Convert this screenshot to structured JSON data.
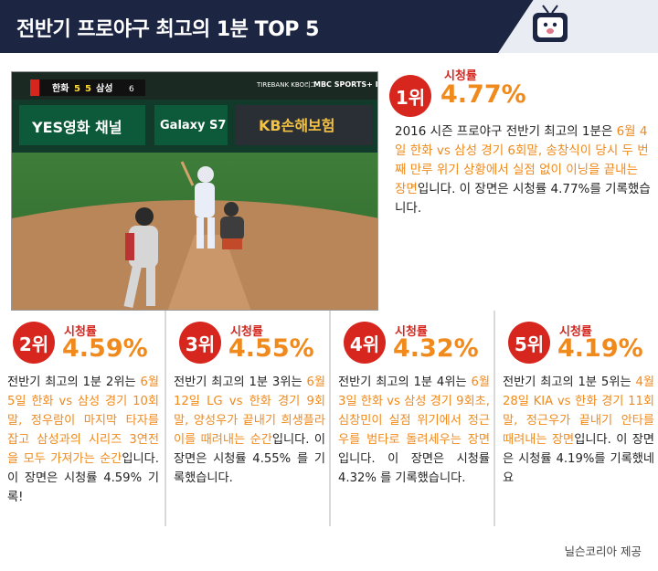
{
  "header": {
    "title": "전반기 프로야구 최고의 1분 TOP 5"
  },
  "scoreboard": {
    "team1": "한화",
    "score1": "5",
    "team2": "삼성",
    "score2": "5",
    "inning": "6"
  },
  "broadcast": {
    "sponsor": "TIREBANK KBO리그",
    "logo": "MBC SPORTS+ LIVE"
  },
  "banners": {
    "left": "YES영화 채널",
    "middle": "Galaxy S7",
    "right": "KB손해보험"
  },
  "ranks": [
    {
      "rank": "1위",
      "label": "시청률",
      "value": "4.77%",
      "desc_pre": "2016 시즌 프로야구 전반기 최고의 1분은 ",
      "desc_hl": "6월 4일 한화 vs 삼성 경기 6회말, 송창식이 당시 두 번째 만루 위기 상황에서 실점 없이 이닝을 끝내는 장면",
      "desc_post": "입니다. 이 장면은 시청률 4.77%를 기록했습니다."
    },
    {
      "rank": "2위",
      "label": "시청률",
      "value": "4.59%",
      "desc_pre": "전반기 최고의 1분 2위는 ",
      "desc_hl": "6월 5일 한화 vs 삼성 경기 10회말, 정우람이 마지막 타자를 잡고 삼성과의 시리즈 3연전을 모두 가져가는 순간",
      "desc_post": "입니다. 이 장면은 시청률 4.59% 기록!"
    },
    {
      "rank": "3위",
      "label": "시청률",
      "value": "4.55%",
      "desc_pre": "전반기 최고의 1분 3위는 ",
      "desc_hl": "6월 12일 LG vs 한화 경기 9회말, 양성우가 끝내기 희생플라이를 때려내는 순간",
      "desc_post": "입니다. 이 장면은 시청률 4.55% 를 기록했습니다."
    },
    {
      "rank": "4위",
      "label": "시청률",
      "value": "4.32%",
      "desc_pre": "전반기 최고의 1분 4위는 ",
      "desc_hl": "6월 3일 한화 vs 삼성 경기 9회초, 심창민이 실점 위기에서 정근우를 범타로 돌려세우는 장면",
      "desc_post": "입니다. 이 장면은 시청률 4.32% 를 기록했습니다."
    },
    {
      "rank": "5위",
      "label": "시청률",
      "value": "4.19%",
      "desc_pre": "전반기 최고의 1분 5위는 ",
      "desc_hl": "4월 28일 KIA vs 한화 경기 11회말, 정근우가 끝내기 안타를 때려내는 장면",
      "desc_post": "입니다. 이 장면은 시청률 4.19%를 기록했네요"
    }
  ],
  "credit": "닐슨코리아 제공",
  "colors": {
    "header": "#1c2541",
    "rank_circle": "#d7261e",
    "rating_value": "#f08a1c",
    "highlight": "#f08a1c"
  }
}
